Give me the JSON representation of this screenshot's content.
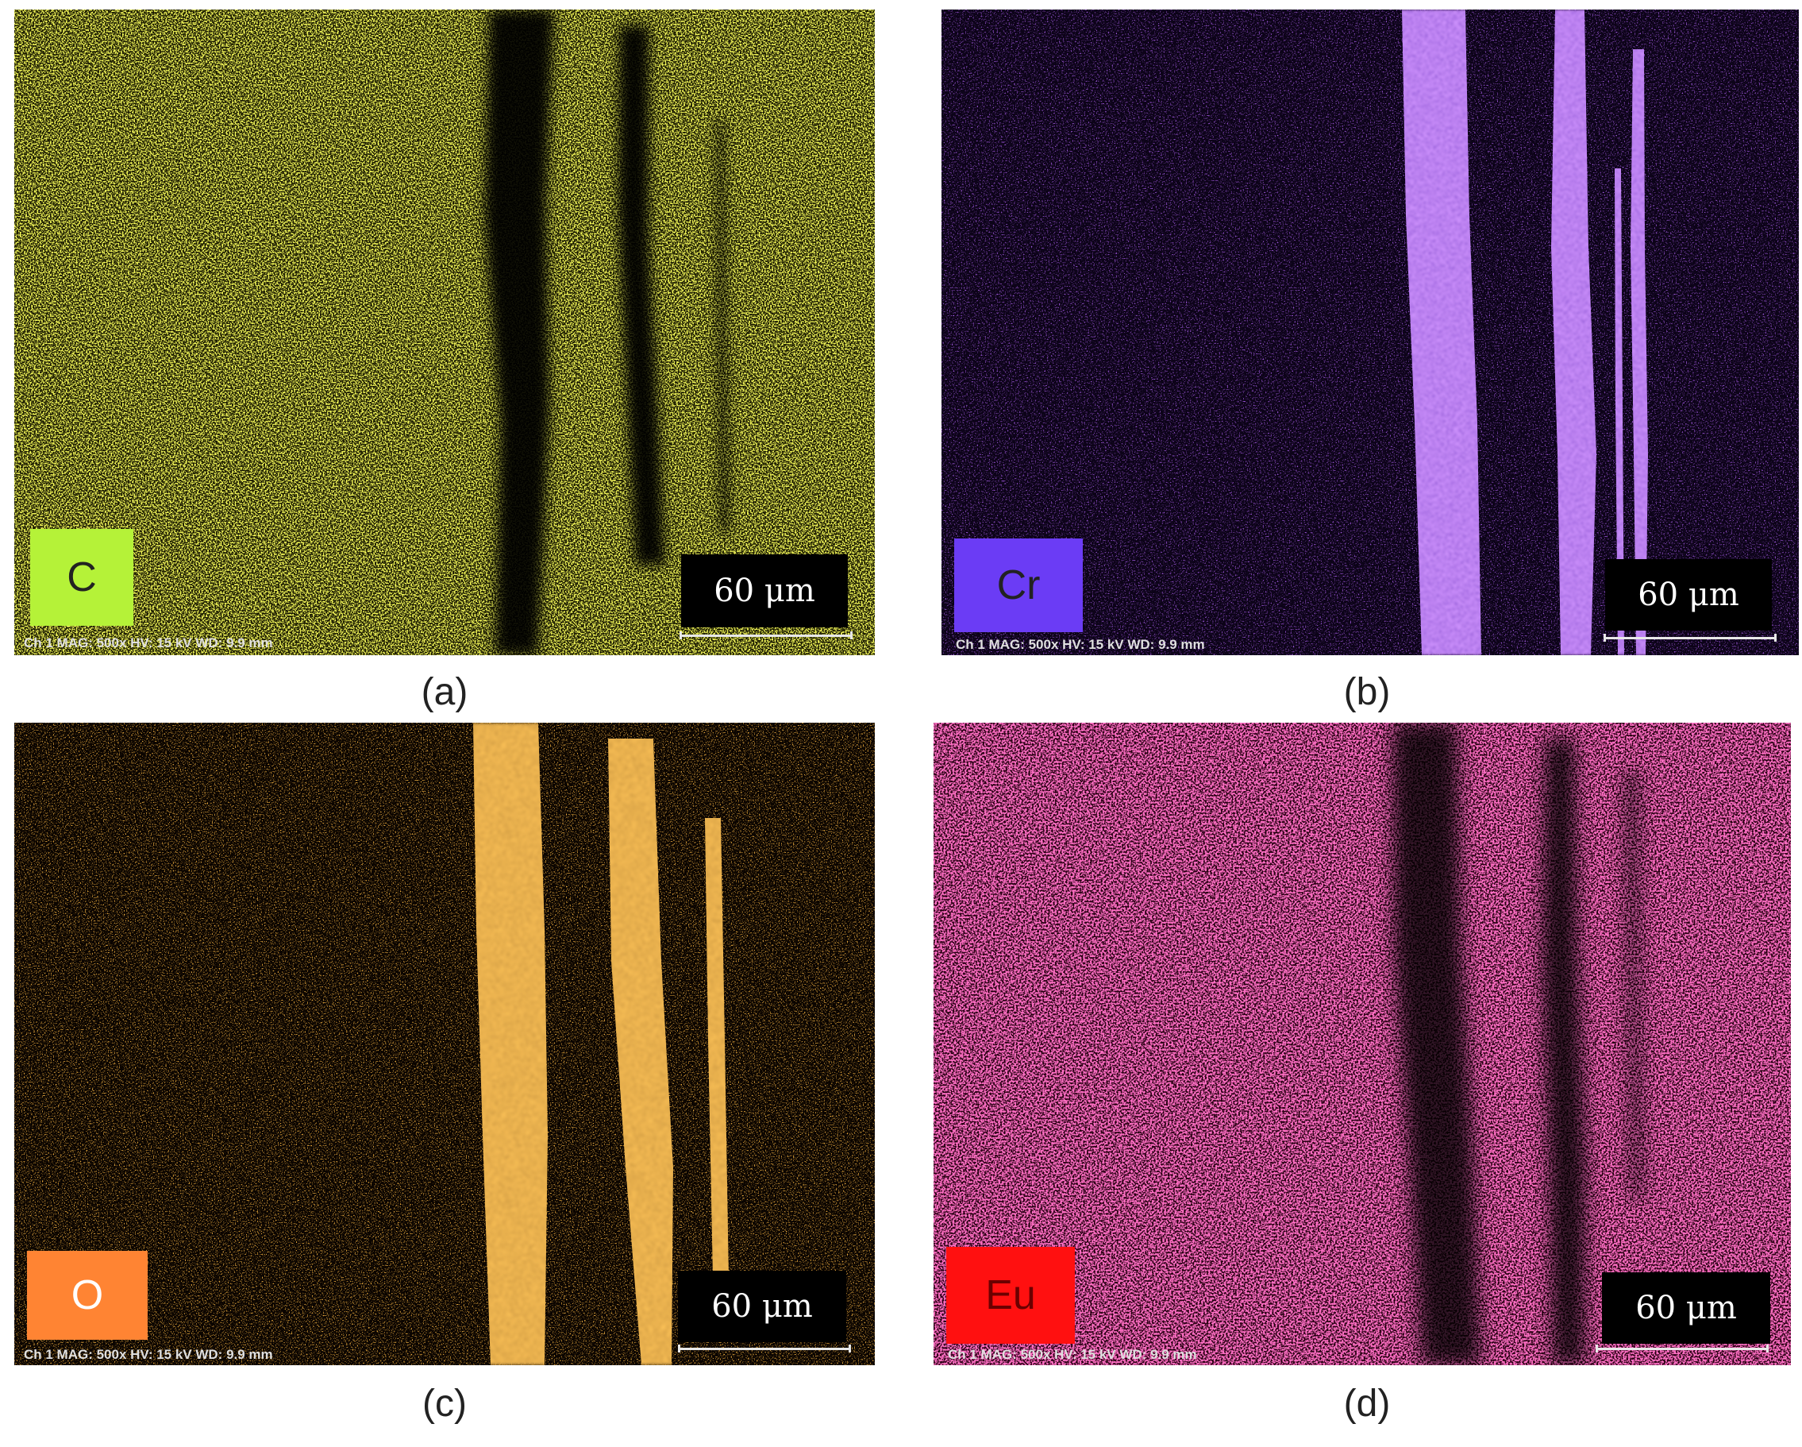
{
  "panels": [
    {
      "id": "a",
      "element": "C",
      "caption": "(a)",
      "scale": "60 μm",
      "meta": "Ch 1    MAG: 500x    HV: 15 kV    WD: 9.9 mm",
      "label_bg": "#b5f238",
      "label_fg": "#222222",
      "map_color": "#e4ec1a",
      "pattern": "background-high-bands-dark"
    },
    {
      "id": "b",
      "element": "Cr",
      "caption": "(b)",
      "scale": "60 μm",
      "meta": "Ch 1    MAG: 500x    HV: 15 kV    WD: 9.9 mm",
      "label_bg": "#6b3cf5",
      "label_fg": "#222222",
      "map_color": "#a34bff",
      "pattern": "background-low-bands-bright"
    },
    {
      "id": "c",
      "element": "O",
      "caption": "(c)",
      "scale": "60 μm",
      "meta": "Ch 1    MAG: 500x    HV: 15 kV    WD: 9.9 mm",
      "label_bg": "#ff8433",
      "label_fg": "#ffffff",
      "map_color": "#ff8a1c",
      "pattern": "background-low-bands-bright"
    },
    {
      "id": "d",
      "element": "Eu",
      "caption": "(d)",
      "scale": "60 μm",
      "meta": "Ch 1    MAG: 500x    HV: 15 kV    WD: 9.9 mm",
      "label_bg": "#ff1010",
      "label_fg": "#6b0000",
      "map_color": "#ff2a8a",
      "pattern": "background-high-bands-dark"
    }
  ]
}
